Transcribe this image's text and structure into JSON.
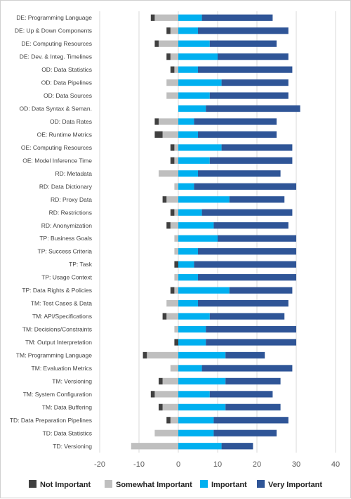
{
  "chart_data": {
    "type": "bar",
    "orientation": "horizontal",
    "stacked": "diverging",
    "categories": [
      "DE: Programming Language",
      "DE: Up & Down Components",
      "DE: Computing Resources",
      "DE: Dev. & Integ. Timelines",
      "OD: Data Statistics",
      "OD: Data Pipelines",
      "OD: Data Sources",
      "OD: Data Syntax & Seman.",
      "OD: Data Rates",
      "OE: Runtime Metrics",
      "OE: Computing Resources",
      "OE: Model Inference Time",
      "RD: Metadata",
      "RD: Data Dictionary",
      "RD: Proxy Data",
      "RD: Restrictions",
      "RD: Anonymization",
      "TP: Business Goals",
      "TP: Success Criteria",
      "TP: Task",
      "TP: Usage Context",
      "TP: Data Rights & Policies",
      "TM: Test Cases & Data",
      "TM: API/Specifications",
      "TM: Decisions/Constraints",
      "TM: Output Interpretation",
      "TM: Programming Language",
      "TM: Evaluation Metrics",
      "TM: Versioning",
      "TM: System Configuration",
      "TM: Data Buffering",
      "TD: Data Preparation Pipelines",
      "TD: Data Statistics",
      "TD: Versioning"
    ],
    "series": [
      {
        "name": "Not Important",
        "color": "#404040",
        "values": [
          1,
          1,
          1,
          1,
          1,
          0,
          0,
          0,
          1,
          2,
          1,
          1,
          0,
          0,
          1,
          1,
          1,
          0,
          0,
          1,
          0,
          1,
          0,
          1,
          0,
          1,
          1,
          0,
          1,
          1,
          1,
          1,
          0,
          0
        ]
      },
      {
        "name": "Somewhat Important",
        "color": "#bfbfbf",
        "values": [
          6,
          2,
          5,
          2,
          1,
          3,
          3,
          0,
          5,
          4,
          1,
          1,
          5,
          1,
          3,
          1,
          2,
          1,
          1,
          0,
          1,
          1,
          3,
          3,
          1,
          0,
          8,
          2,
          4,
          6,
          4,
          2,
          6,
          12
        ]
      },
      {
        "name": "Important",
        "color": "#00b0f0",
        "values": [
          6,
          5,
          8,
          10,
          5,
          11,
          8,
          7,
          4,
          5,
          11,
          8,
          5,
          4,
          13,
          6,
          9,
          10,
          5,
          4,
          5,
          13,
          5,
          8,
          7,
          7,
          12,
          6,
          12,
          8,
          12,
          9,
          9,
          11
        ]
      },
      {
        "name": "Very Important",
        "color": "#2f5597",
        "values": [
          18,
          23,
          17,
          18,
          24,
          17,
          20,
          24,
          21,
          20,
          18,
          21,
          21,
          26,
          14,
          23,
          19,
          20,
          25,
          26,
          25,
          16,
          23,
          19,
          23,
          23,
          10,
          23,
          14,
          16,
          14,
          19,
          16,
          8
        ]
      }
    ],
    "xlim": [
      -20,
      40
    ],
    "xticks": [
      "-20",
      "-10",
      "0",
      "10",
      "20",
      "30",
      "40"
    ],
    "grid": true,
    "legend_position": "bottom"
  }
}
